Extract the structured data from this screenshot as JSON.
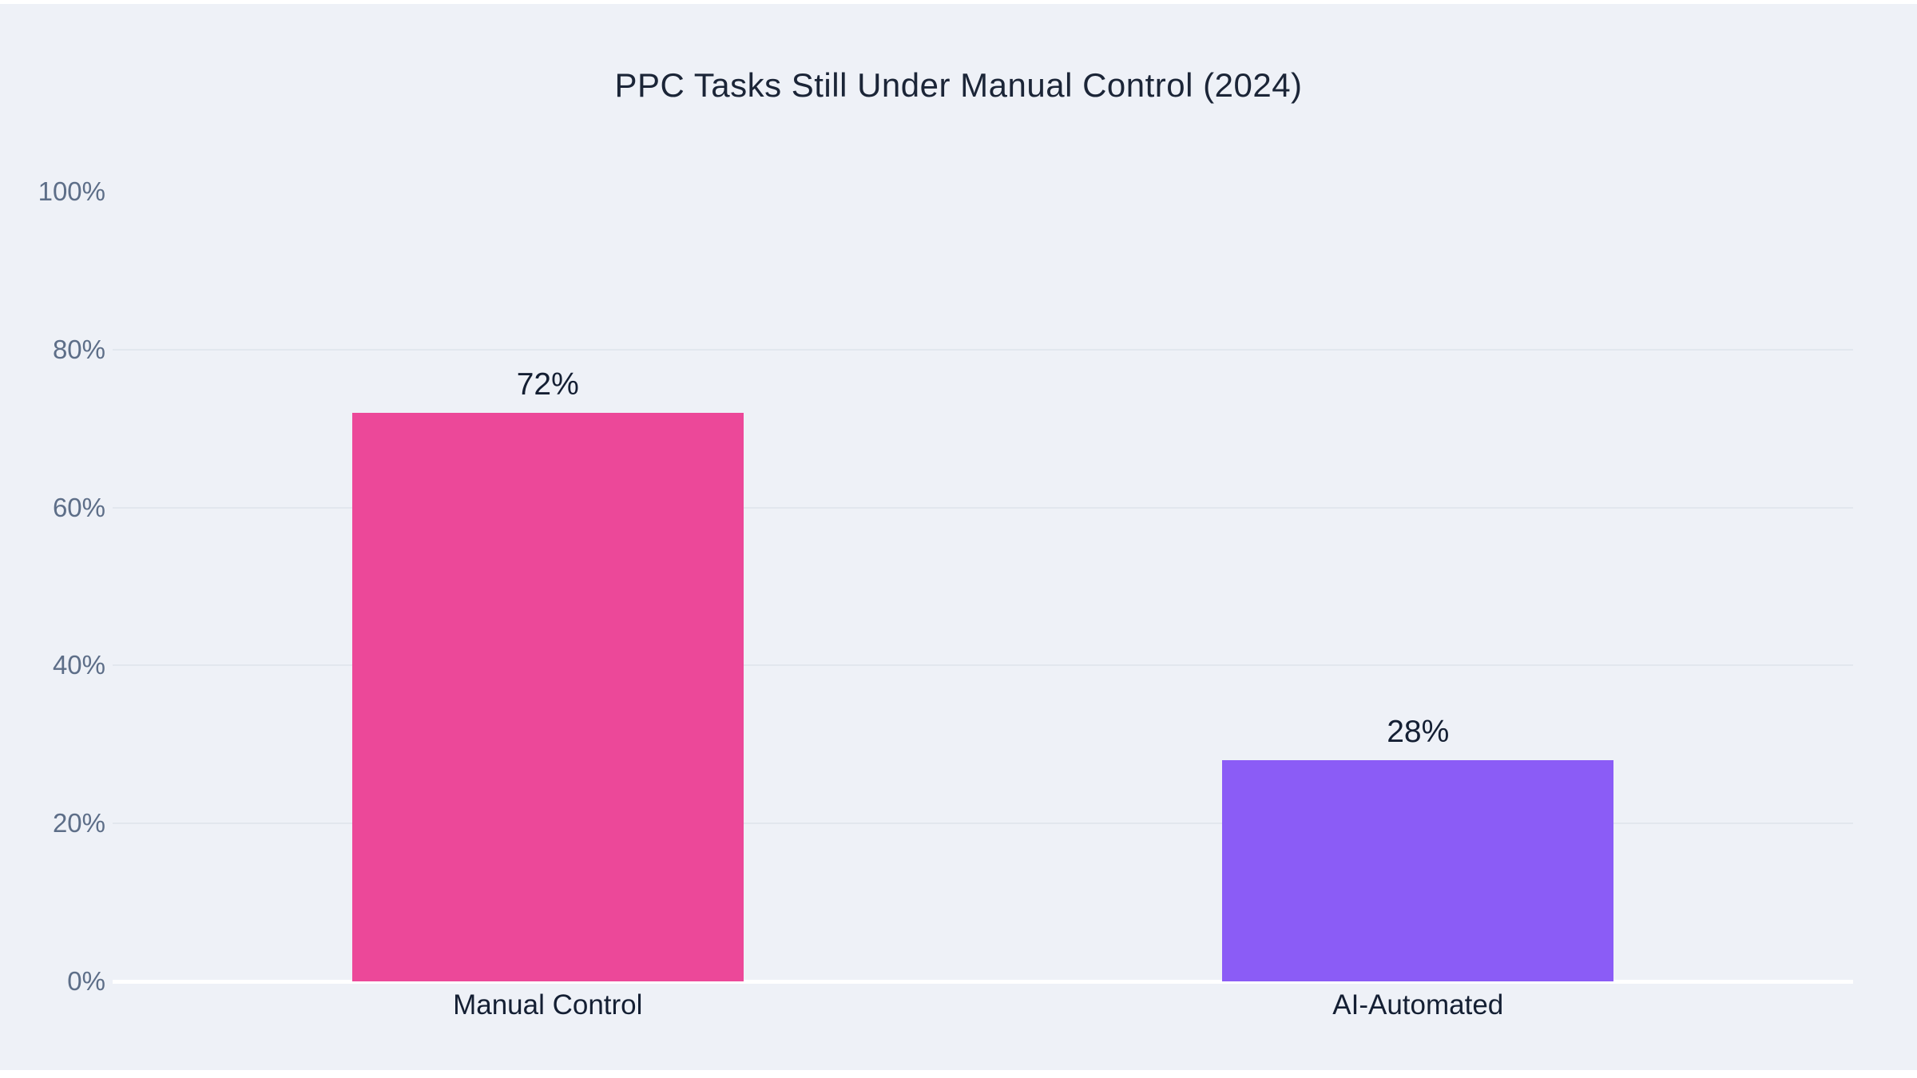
{
  "chart_data": {
    "type": "bar",
    "title": "PPC Tasks Still Under Manual Control (2024)",
    "categories": [
      "Manual Control",
      "AI-Automated"
    ],
    "values": [
      72,
      28
    ],
    "value_labels": [
      "72%",
      "28%"
    ],
    "bar_colors": [
      "#ec4899",
      "#8b5cf6"
    ],
    "xlabel": "",
    "ylabel": "",
    "ylim": [
      0,
      100
    ],
    "yticks": [
      0,
      20,
      40,
      60,
      80,
      100
    ],
    "ytick_labels": [
      "0%",
      "20%",
      "40%",
      "60%",
      "80%",
      "100%"
    ],
    "grid": true,
    "gridlines_at": [
      20,
      40,
      60,
      80
    ],
    "legend": false
  },
  "colors": {
    "page_edge": "#ffffff",
    "panel_background": "#eef1f7",
    "gridline": "#e2e7ee",
    "axis_line": "#ffffff",
    "title_text": "#1b2537",
    "tick_text": "#5d6e88",
    "value_text": "#141f33",
    "category_text": "#141f33"
  }
}
